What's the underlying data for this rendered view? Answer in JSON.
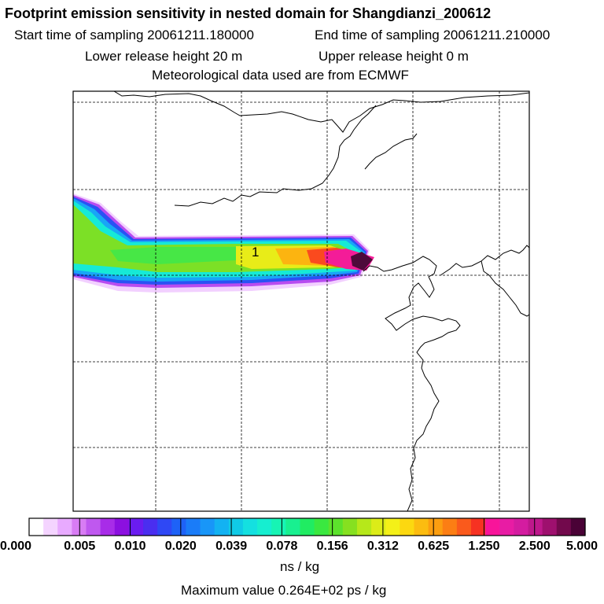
{
  "title": "Footprint emission sensitivity in nested domain for Shangdianzi_200612",
  "start_time": "Start time of sampling 20061211.180000",
  "end_time": "End time of sampling 20061211.210000",
  "lower_height": "Lower release height   20 m",
  "upper_height": "Upper release height    0 m",
  "met_data": "Meteorological data used are from ECMWF",
  "contour_label": "1",
  "colorbar": {
    "colors": [
      "#ffffff",
      "#f4d4ff",
      "#e8aaff",
      "#d87cf4",
      "#bf58ef",
      "#a82ce8",
      "#8c10e0",
      "#6a1cf0",
      "#4a2ef0",
      "#2f48f5",
      "#1e62f7",
      "#1a7cf8",
      "#1896f8",
      "#13b2f2",
      "#10cae6",
      "#14e0e0",
      "#16eed0",
      "#17f4b4",
      "#18f090",
      "#20ec62",
      "#3ae840",
      "#5ce22c",
      "#86e020",
      "#b6e81a",
      "#dcec18",
      "#f4f018",
      "#fcd810",
      "#fcbc10",
      "#fc9e10",
      "#fc7e14",
      "#fa5a1c",
      "#f63222",
      "#f8149a",
      "#e81ca4",
      "#d41ca0",
      "#be188c",
      "#9e106e",
      "#72094c",
      "#4a0236"
    ],
    "labels": [
      "0.000",
      "0.005",
      "0.010",
      "0.020",
      "0.039",
      "0.078",
      "0.156",
      "0.312",
      "0.625",
      "1.250",
      "2.500",
      "5.000"
    ]
  },
  "unit_label": "ns / kg",
  "max_value": "Maximum value  0.264E+02 ps / kg"
}
